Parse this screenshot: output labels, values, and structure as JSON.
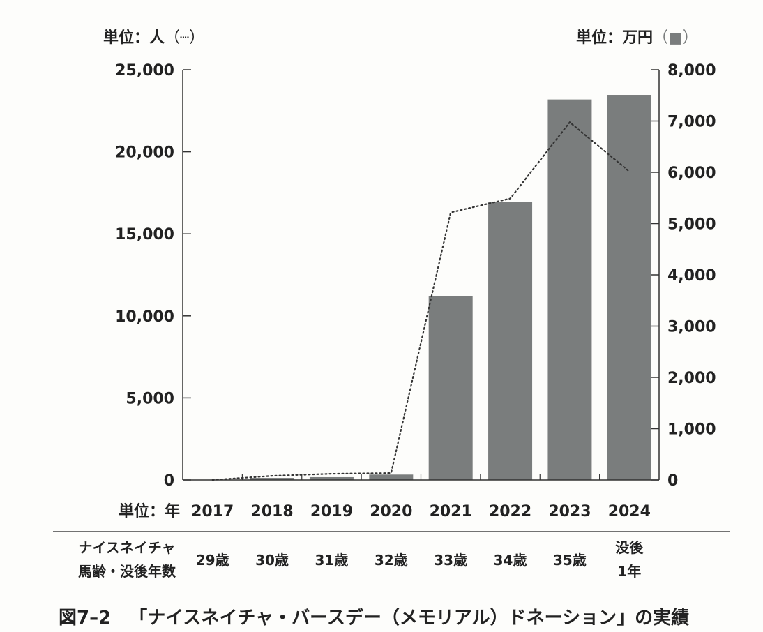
{
  "left_unit": "単位：人",
  "left_unit_symbol": "（┈）",
  "right_unit": "単位：万円",
  "right_unit_symbol": "（■）",
  "year_unit_label": "単位：年",
  "age_row_label": [
    "ナイスネイチャ",
    "馬齢・没後年数"
  ],
  "ages": [
    [
      "29歳"
    ],
    [
      "30歳"
    ],
    [
      "31歳"
    ],
    [
      "32歳"
    ],
    [
      "33歳"
    ],
    [
      "34歳"
    ],
    [
      "35歳"
    ],
    [
      "没後",
      "1年"
    ]
  ],
  "caption": {
    "figure_number": "図7–2",
    "text": "「ナイスネイチャ・バースデー（メモリアル）ドネーション」の実績"
  },
  "colors": {
    "bar": "#7a7d7d",
    "line": "#333333",
    "axis": "#333333"
  },
  "chart_data": {
    "type": "bar",
    "categories": [
      "2017",
      "2018",
      "2019",
      "2020",
      "2021",
      "2022",
      "2023",
      "2024"
    ],
    "y_left": {
      "label": "単位：人",
      "range": [
        0,
        25000
      ],
      "ticks": [
        "0",
        "5,000",
        "10,000",
        "15,000",
        "20,000",
        "25,000"
      ]
    },
    "y_right": {
      "label": "単位：万円",
      "range": [
        0,
        8000
      ],
      "ticks": [
        "0",
        "1,000",
        "2,000",
        "3,000",
        "4,000",
        "5,000",
        "6,000",
        "7,000",
        "8,000"
      ]
    },
    "series": [
      {
        "name": "万円",
        "type": "bar",
        "axis": "right",
        "values": [
          5,
          40,
          55,
          105,
          3590,
          5420,
          7420,
          7510
        ]
      },
      {
        "name": "人",
        "type": "line",
        "style": "dotted",
        "axis": "left",
        "values": [
          0,
          250,
          380,
          420,
          16300,
          17150,
          21800,
          18800
        ]
      }
    ],
    "grid": false,
    "legend": "none"
  }
}
